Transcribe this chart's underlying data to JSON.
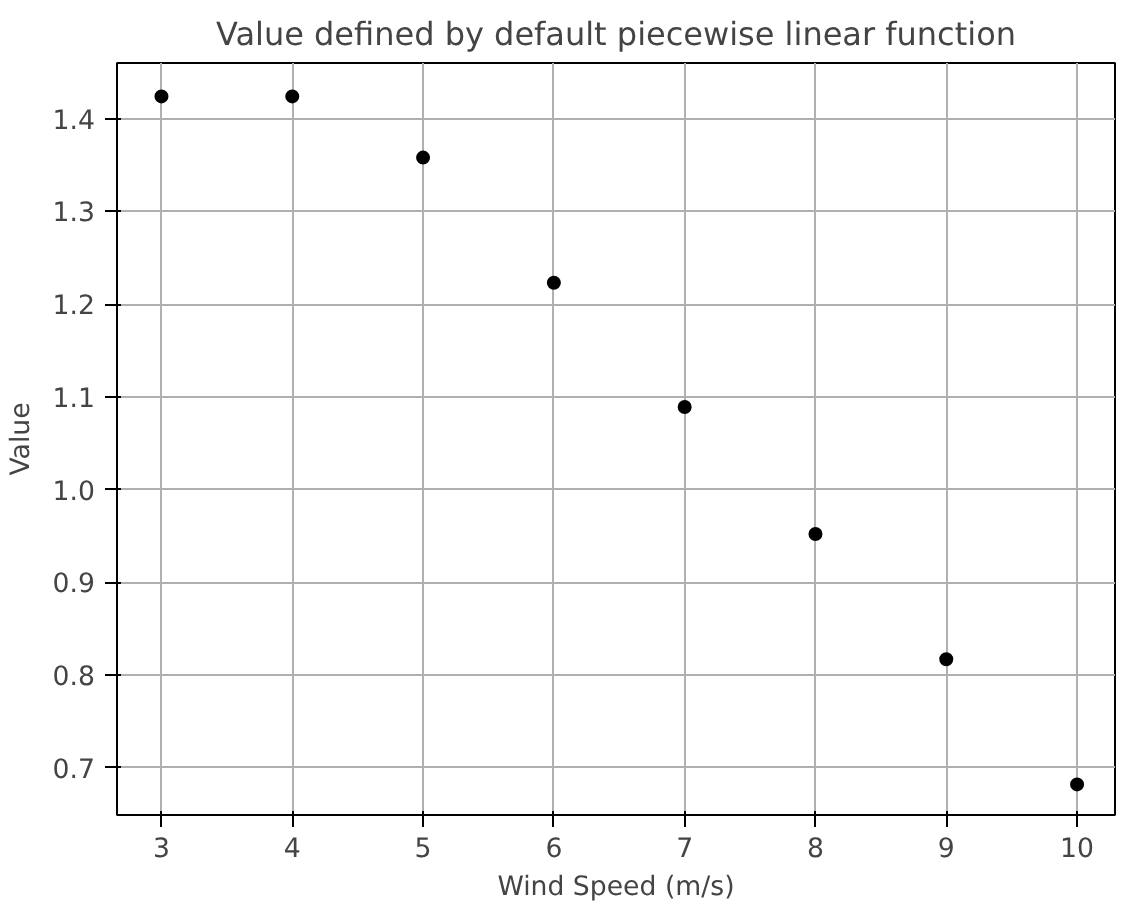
{
  "chart_data": {
    "type": "scatter",
    "title": "Value defined by default piecewise linear function",
    "xlabel": "Wind Speed (m/s)",
    "ylabel": "Value",
    "x": [
      3,
      4,
      5,
      6,
      7,
      8,
      9,
      10
    ],
    "series": [
      {
        "color": "#000000",
        "values": [
          1.424,
          1.424,
          1.358,
          1.223,
          1.089,
          0.952,
          0.817,
          0.682
        ]
      }
    ],
    "xlim": [
      2.66,
      10.29
    ],
    "ylim": [
      0.649,
      1.46
    ],
    "xticks": [
      3,
      4,
      5,
      6,
      7,
      8,
      9,
      10
    ],
    "yticks": [
      {
        "value": 0.7,
        "label": "0.7"
      },
      {
        "value": 0.8,
        "label": "0.8"
      },
      {
        "value": 0.9,
        "label": "0.9"
      },
      {
        "value": 1.0,
        "label": "1.0"
      },
      {
        "value": 1.1,
        "label": "1.1"
      },
      {
        "value": 1.2,
        "label": "1.2"
      },
      {
        "value": 1.3,
        "label": "1.3"
      },
      {
        "value": 1.4,
        "label": "1.4"
      }
    ],
    "grid": true,
    "marker": "circle"
  }
}
